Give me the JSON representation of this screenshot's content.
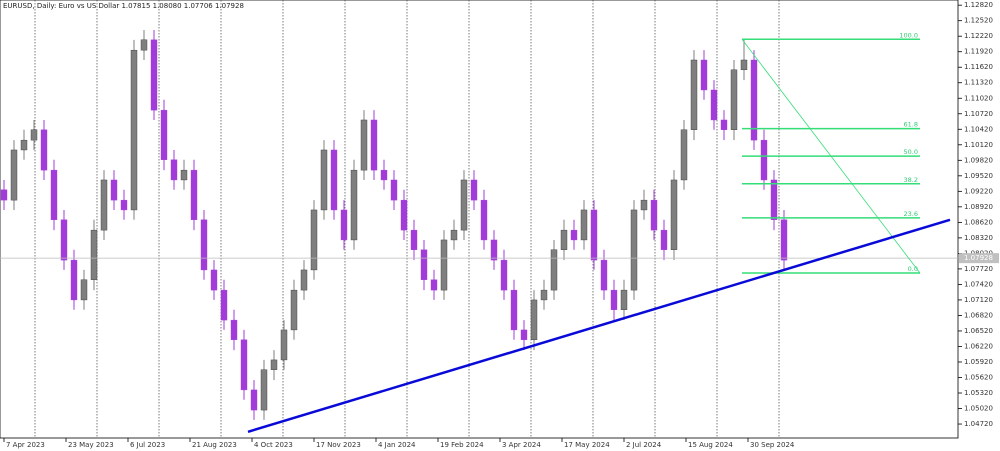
{
  "chart_data": {
    "type": "candlestick",
    "title": "EURUSD, Daily:  Euro vs US Dollar  1.07815 1.08080 1.07706 1.07928",
    "up_color": "#7f7f7f",
    "down_color": "#a23cd8",
    "xlim": [
      -0.4,
      95.4
    ],
    "ylim": [
      1.0445,
      1.1292
    ],
    "xticks": [
      {
        "value": 0,
        "label": "7 Apr 2023"
      },
      {
        "value": 6.2,
        "label": "23 May 2023"
      },
      {
        "value": 12.4,
        "label": "6 Jul 2023"
      },
      {
        "value": 18.6,
        "label": "21 Aug 2023"
      },
      {
        "value": 24.8,
        "label": "4 Oct 2023"
      },
      {
        "value": 31,
        "label": "17 Nov 2023"
      },
      {
        "value": 37.2,
        "label": "4 Jan 2024"
      },
      {
        "value": 43.4,
        "label": "19 Feb 2024"
      },
      {
        "value": 49.6,
        "label": "3 Apr 2024"
      },
      {
        "value": 55.8,
        "label": "17 May 2024"
      },
      {
        "value": 62,
        "label": "2 Jul 2024"
      },
      {
        "value": 68.2,
        "label": "15 Aug 2024"
      },
      {
        "value": 74.4,
        "label": "30 Sep 2024"
      }
    ],
    "yticks": [
      {
        "value": 1.1282,
        "label": "1.12820"
      },
      {
        "value": 1.1252,
        "label": "1.12520"
      },
      {
        "value": 1.1222,
        "label": "1.12220"
      },
      {
        "value": 1.1192,
        "label": "1.11920"
      },
      {
        "value": 1.1162,
        "label": "1.11620"
      },
      {
        "value": 1.1132,
        "label": "1.11320"
      },
      {
        "value": 1.1102,
        "label": "1.11020"
      },
      {
        "value": 1.1072,
        "label": "1.10720"
      },
      {
        "value": 1.1042,
        "label": "1.10420"
      },
      {
        "value": 1.1012,
        "label": "1.10120"
      },
      {
        "value": 1.0982,
        "label": "1.09820"
      },
      {
        "value": 1.0952,
        "label": "1.09520"
      },
      {
        "value": 1.0922,
        "label": "1.09220"
      },
      {
        "value": 1.0892,
        "label": "1.08920"
      },
      {
        "value": 1.0862,
        "label": "1.08620"
      },
      {
        "value": 1.0832,
        "label": "1.08320"
      },
      {
        "value": 1.0802,
        "label": "1.08020"
      },
      {
        "value": 1.0772,
        "label": "1.07720"
      },
      {
        "value": 1.0742,
        "label": "1.07420"
      },
      {
        "value": 1.0712,
        "label": "1.07120"
      },
      {
        "value": 1.0682,
        "label": "1.06820"
      },
      {
        "value": 1.0652,
        "label": "1.06520"
      },
      {
        "value": 1.0622,
        "label": "1.06220"
      },
      {
        "value": 1.0592,
        "label": "1.05920"
      },
      {
        "value": 1.0562,
        "label": "1.05620"
      },
      {
        "value": 1.0532,
        "label": "1.05320"
      },
      {
        "value": 1.0502,
        "label": "1.05020"
      },
      {
        "value": 1.0472,
        "label": "1.04720"
      }
    ],
    "current_price": {
      "value": 1.07928,
      "label": "1.07928"
    },
    "candles": [
      [
        1.0925,
        1.0944,
        1.0886,
        1.0905
      ],
      [
        1.0905,
        1.1021,
        1.0886,
        1.1002
      ],
      [
        1.1002,
        1.1041,
        1.0983,
        1.1021
      ],
      [
        1.1021,
        1.106,
        1.1002,
        1.1041
      ],
      [
        1.1041,
        1.106,
        1.0944,
        1.0963
      ],
      [
        1.0963,
        1.0983,
        1.0847,
        1.0867
      ],
      [
        1.0867,
        1.0886,
        1.077,
        1.0789
      ],
      [
        1.0789,
        1.0809,
        1.0693,
        1.0712
      ],
      [
        1.0712,
        1.077,
        1.0693,
        1.0751
      ],
      [
        1.0751,
        1.0867,
        1.0731,
        1.0847
      ],
      [
        1.0847,
        1.0963,
        1.0828,
        1.0944
      ],
      [
        1.0944,
        1.0963,
        1.0886,
        1.0905
      ],
      [
        1.0905,
        1.0925,
        1.0867,
        1.0886
      ],
      [
        1.0886,
        1.1215,
        1.0867,
        1.1195
      ],
      [
        1.1195,
        1.1234,
        1.1176,
        1.1215
      ],
      [
        1.1215,
        1.1234,
        1.106,
        1.1079
      ],
      [
        1.1079,
        1.1099,
        1.0963,
        1.0983
      ],
      [
        1.0983,
        1.1002,
        1.0925,
        1.0944
      ],
      [
        1.0944,
        1.0983,
        1.0925,
        1.0963
      ],
      [
        1.0963,
        1.0983,
        1.0847,
        1.0867
      ],
      [
        1.0867,
        1.0886,
        1.0751,
        1.077
      ],
      [
        1.077,
        1.0789,
        1.0712,
        1.0731
      ],
      [
        1.0731,
        1.0751,
        1.0654,
        1.0673
      ],
      [
        1.0673,
        1.0693,
        1.0615,
        1.0635
      ],
      [
        1.0635,
        1.0654,
        1.0519,
        1.0538
      ],
      [
        1.0538,
        1.0557,
        1.048,
        1.0499
      ],
      [
        1.0499,
        1.0596,
        1.048,
        1.0577
      ],
      [
        1.0577,
        1.0615,
        1.0557,
        1.0596
      ],
      [
        1.0596,
        1.0673,
        1.0577,
        1.0654
      ],
      [
        1.0654,
        1.0751,
        1.0635,
        1.0731
      ],
      [
        1.0731,
        1.0789,
        1.0712,
        1.077
      ],
      [
        1.077,
        1.0905,
        1.0751,
        1.0886
      ],
      [
        1.0886,
        1.1021,
        1.0867,
        1.1002
      ],
      [
        1.1002,
        1.1021,
        1.0867,
        1.0886
      ],
      [
        1.0886,
        1.0905,
        1.0809,
        1.0828
      ],
      [
        1.0828,
        1.0983,
        1.0809,
        1.0963
      ],
      [
        1.0963,
        1.1079,
        1.0944,
        1.106
      ],
      [
        1.106,
        1.1079,
        1.0944,
        1.0963
      ],
      [
        1.0963,
        1.0983,
        1.0925,
        1.0944
      ],
      [
        1.0944,
        1.0963,
        1.0886,
        1.0905
      ],
      [
        1.0905,
        1.0925,
        1.0828,
        1.0847
      ],
      [
        1.0847,
        1.0867,
        1.0789,
        1.0809
      ],
      [
        1.0809,
        1.0828,
        1.0731,
        1.0751
      ],
      [
        1.0751,
        1.077,
        1.0712,
        1.0731
      ],
      [
        1.0731,
        1.0847,
        1.0712,
        1.0828
      ],
      [
        1.0828,
        1.0867,
        1.0809,
        1.0847
      ],
      [
        1.0847,
        1.0963,
        1.0828,
        1.0944
      ],
      [
        1.0944,
        1.0963,
        1.0886,
        1.0905
      ],
      [
        1.0905,
        1.0925,
        1.0809,
        1.0828
      ],
      [
        1.0828,
        1.0847,
        1.077,
        1.0789
      ],
      [
        1.0789,
        1.0809,
        1.0712,
        1.0731
      ],
      [
        1.0731,
        1.0751,
        1.0635,
        1.0654
      ],
      [
        1.0654,
        1.0673,
        1.0615,
        1.0635
      ],
      [
        1.0635,
        1.0731,
        1.0615,
        1.0712
      ],
      [
        1.0712,
        1.0751,
        1.0693,
        1.0731
      ],
      [
        1.0731,
        1.0828,
        1.0712,
        1.0809
      ],
      [
        1.0809,
        1.0867,
        1.0789,
        1.0847
      ],
      [
        1.0847,
        1.0867,
        1.0809,
        1.0828
      ],
      [
        1.0828,
        1.0905,
        1.0809,
        1.0886
      ],
      [
        1.0886,
        1.0905,
        1.077,
        1.0789
      ],
      [
        1.0789,
        1.0809,
        1.0712,
        1.0731
      ],
      [
        1.0731,
        1.0751,
        1.0673,
        1.0693
      ],
      [
        1.0693,
        1.0751,
        1.0673,
        1.0731
      ],
      [
        1.0731,
        1.0905,
        1.0712,
        1.0886
      ],
      [
        1.0886,
        1.0925,
        1.0867,
        1.0905
      ],
      [
        1.0905,
        1.0925,
        1.0828,
        1.0847
      ],
      [
        1.0847,
        1.0867,
        1.0789,
        1.0809
      ],
      [
        1.0809,
        1.0963,
        1.0789,
        1.0944
      ],
      [
        1.0944,
        1.106,
        1.0925,
        1.1041
      ],
      [
        1.1041,
        1.1195,
        1.1021,
        1.1176
      ],
      [
        1.1176,
        1.1195,
        1.1099,
        1.1118
      ],
      [
        1.1118,
        1.1137,
        1.1041,
        1.106
      ],
      [
        1.106,
        1.1079,
        1.1021,
        1.1041
      ],
      [
        1.1041,
        1.1176,
        1.1021,
        1.1157
      ],
      [
        1.1157,
        1.1215,
        1.1137,
        1.1176
      ],
      [
        1.1176,
        1.1195,
        1.1002,
        1.1021
      ],
      [
        1.1021,
        1.1041,
        1.0925,
        1.0944
      ],
      [
        1.0944,
        1.0963,
        1.0847,
        1.0867
      ],
      [
        1.0867,
        1.0886,
        1.077,
        1.0789
      ]
    ],
    "trendline": {
      "x": [
        24.4,
        94.6
      ],
      "y": [
        1.0457,
        1.0867
      ],
      "color": "#0a0ad8"
    },
    "fibonacci": {
      "color": "#33dd77",
      "x": [
        73.8,
        91.6
      ],
      "high": 1.1216,
      "low": 1.0764,
      "levels": [
        {
          "value": 100,
          "label": "100.0"
        },
        {
          "value": 61.8,
          "label": "61.8"
        },
        {
          "value": 50,
          "label": "50.0"
        },
        {
          "value": 38.2,
          "label": "38.2"
        },
        {
          "value": 23.6,
          "label": "23.6"
        },
        {
          "value": 0,
          "label": "0.0"
        }
      ]
    }
  }
}
